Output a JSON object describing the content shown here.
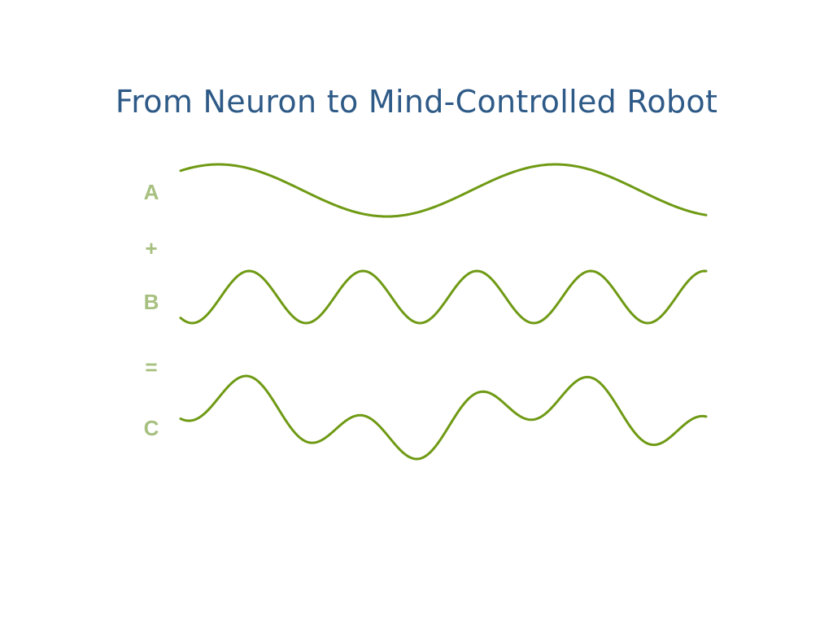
{
  "slide": {
    "title": "From Neuron to Mind-Controlled Robot"
  },
  "labels": {
    "a": "A",
    "plus": "+",
    "b": "B",
    "equals": "=",
    "c": "C"
  },
  "colors": {
    "title": "#2e5a87",
    "label": "#a7c080",
    "wave": "#6f9a14",
    "background": "#ffffff"
  }
}
